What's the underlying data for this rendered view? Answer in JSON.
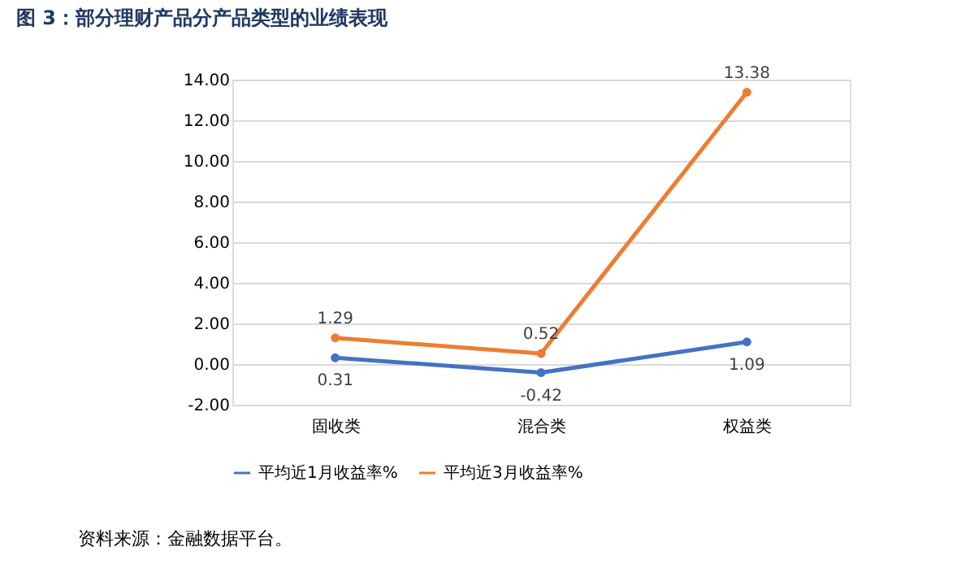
{
  "chart_data": {
    "type": "line",
    "title": "图 3：部分理财产品分产品类型的业绩表现",
    "categories": [
      "固收类",
      "混合类",
      "权益类"
    ],
    "series": [
      {
        "name": "平均近1月收益率%",
        "color": "#4472c4",
        "values": [
          0.31,
          -0.42,
          1.09
        ]
      },
      {
        "name": "平均近3月收益率%",
        "color": "#ed7d31",
        "values": [
          1.29,
          0.52,
          13.38
        ]
      }
    ],
    "ylim": [
      -2,
      14
    ],
    "yticks": [
      {
        "value": -2,
        "label": "-2.00"
      },
      {
        "value": 0,
        "label": "0.00"
      },
      {
        "value": 2,
        "label": "2.00"
      },
      {
        "value": 4,
        "label": "4.00"
      },
      {
        "value": 6,
        "label": "6.00"
      },
      {
        "value": 8,
        "label": "8.00"
      },
      {
        "value": 10,
        "label": "10.00"
      },
      {
        "value": 12,
        "label": "12.00"
      },
      {
        "value": 14,
        "label": "14.00"
      }
    ],
    "grid": "y",
    "legend": "bottom",
    "marker": "circle",
    "line_style": "solid",
    "data_labels": true,
    "annotations": [
      "资料来源：金融数据平台。"
    ]
  }
}
